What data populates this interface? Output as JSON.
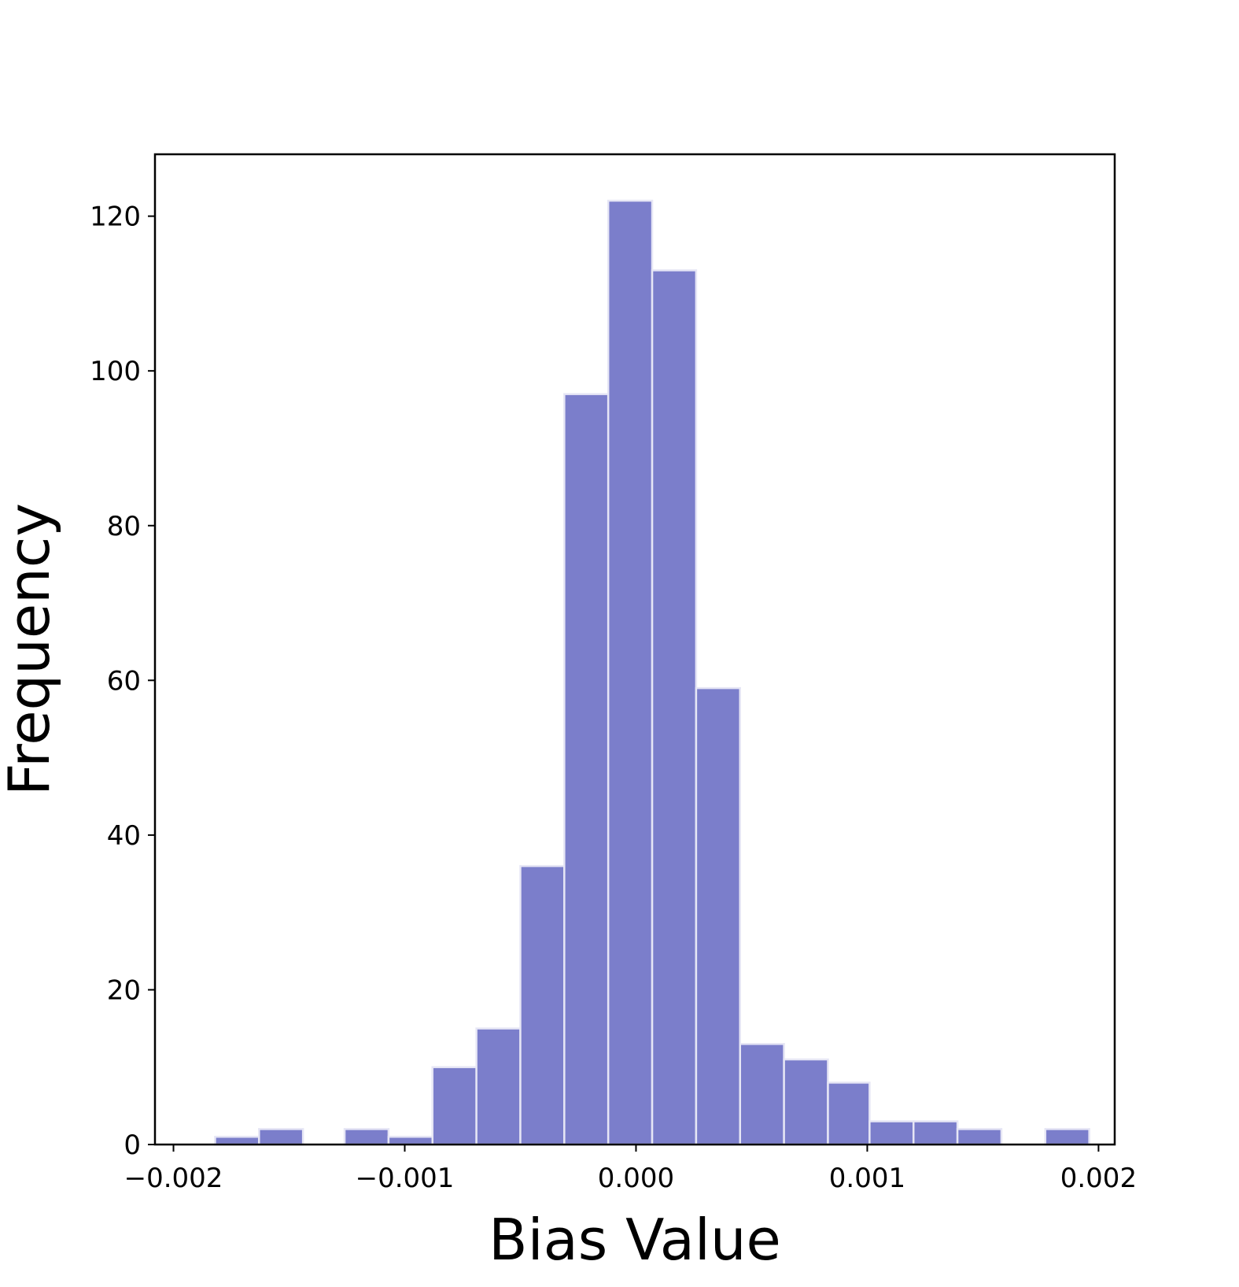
{
  "chart_data": {
    "type": "bar",
    "subtype": "histogram",
    "xlabel": "Bias Value",
    "ylabel": "Frequency",
    "xlim": [
      -0.00208,
      0.00207
    ],
    "ylim": [
      0,
      128
    ],
    "x_ticks": [
      -0.002,
      -0.001,
      0.0,
      0.001,
      0.002
    ],
    "x_tick_labels": [
      "−0.002",
      "−0.001",
      "0.000",
      "0.001",
      "0.002"
    ],
    "y_ticks": [
      0,
      20,
      40,
      60,
      80,
      100,
      120
    ],
    "y_tick_labels": [
      "0",
      "20",
      "40",
      "60",
      "80",
      "100",
      "120"
    ],
    "bin_edges": [
      -0.00182,
      -0.00163,
      -0.00144,
      -0.00126,
      -0.00107,
      -0.00088,
      -0.00069,
      -0.0005,
      -0.00031,
      -0.00012,
      7e-05,
      0.00026,
      0.00045,
      0.00064,
      0.00083,
      0.00101,
      0.0012,
      0.00139,
      0.00158,
      0.00177,
      0.00196
    ],
    "counts": [
      1,
      2,
      0,
      2,
      1,
      10,
      15,
      36,
      97,
      122,
      113,
      59,
      13,
      11,
      8,
      3,
      3,
      2,
      0,
      2
    ],
    "grid": false,
    "legend": "none",
    "colors": {
      "bar_fill": "#7b7ecb",
      "bar_edge": "#e6e6f5",
      "axis": "#000000"
    }
  }
}
